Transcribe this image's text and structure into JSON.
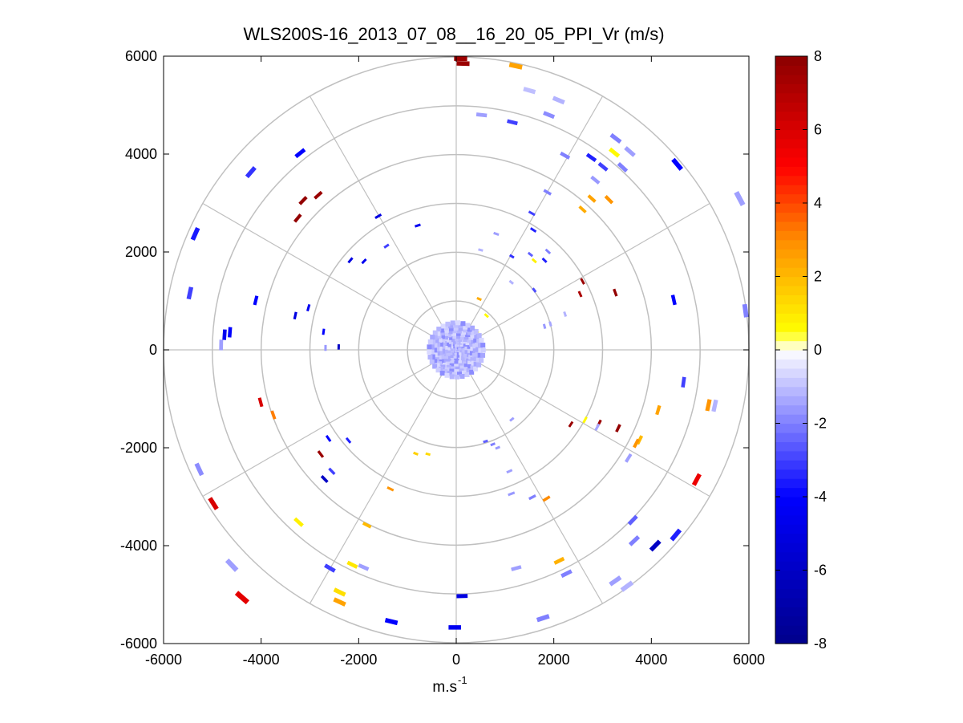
{
  "chart_data": {
    "type": "scatter",
    "subtype": "polar-ppi",
    "title": "WLS200S-16_2013_07_08__16_20_05_PPI_Vr (m/s)",
    "xlabel": "m.s",
    "xlabel_sup": "-1",
    "ylabel": "",
    "xlim": [
      -6000,
      6000
    ],
    "ylim": [
      -6000,
      6000
    ],
    "xticks": [
      "-6000",
      "-4000",
      "-2000",
      "0",
      "2000",
      "4000",
      "6000"
    ],
    "yticks": [
      "6000",
      "4000",
      "2000",
      "0",
      "-2000",
      "-4000",
      "-6000"
    ],
    "polar_grid": {
      "ring_radii": [
        1000,
        2000,
        3000,
        4000,
        5000,
        6000
      ],
      "spoke_step_deg": 30
    },
    "colorbar": {
      "min": -8,
      "max": 8,
      "ticks": [
        "8",
        "6",
        "4",
        "2",
        "0",
        "-2",
        "-4",
        "-6",
        "-8"
      ],
      "colormap": [
        [
          "#00008b",
          -8
        ],
        [
          "#0000ff",
          -4
        ],
        [
          "#ffffff",
          0
        ],
        [
          "#ffff00",
          0.5
        ],
        [
          "#ff8c00",
          3
        ],
        [
          "#ff0000",
          5
        ],
        [
          "#8b0000",
          8
        ]
      ]
    },
    "points": [
      {
        "x": 90,
        "y": 5950,
        "v": 7.5
      },
      {
        "x": 140,
        "y": 5850,
        "v": 7.6
      },
      {
        "x": 1220,
        "y": 5800,
        "v": 2.5
      },
      {
        "x": 1500,
        "y": 5300,
        "v": -1
      },
      {
        "x": 1900,
        "y": 4800,
        "v": -1.8
      },
      {
        "x": 2100,
        "y": 5100,
        "v": -1.2
      },
      {
        "x": 520,
        "y": 4800,
        "v": -1.5
      },
      {
        "x": 1150,
        "y": 4650,
        "v": -3
      },
      {
        "x": 3270,
        "y": 4320,
        "v": -2
      },
      {
        "x": 3240,
        "y": 4030,
        "v": 0.6
      },
      {
        "x": 3560,
        "y": 4050,
        "v": -1.5
      },
      {
        "x": 4530,
        "y": 3790,
        "v": -4
      },
      {
        "x": 2230,
        "y": 3970,
        "v": -2
      },
      {
        "x": 2770,
        "y": 3930,
        "v": -3.5
      },
      {
        "x": 3010,
        "y": 3740,
        "v": -3
      },
      {
        "x": 3410,
        "y": 3730,
        "v": -2
      },
      {
        "x": 2850,
        "y": 3470,
        "v": -1.6
      },
      {
        "x": 2780,
        "y": 3090,
        "v": 2.5
      },
      {
        "x": 3130,
        "y": 3070,
        "v": 2.8
      },
      {
        "x": 2590,
        "y": 2870,
        "v": 2.3
      },
      {
        "x": 1870,
        "y": 3220,
        "v": -2
      },
      {
        "x": 1550,
        "y": 2790,
        "v": -3
      },
      {
        "x": -3200,
        "y": 4020,
        "v": -4
      },
      {
        "x": -3140,
        "y": 3050,
        "v": 7.8
      },
      {
        "x": -3250,
        "y": 2690,
        "v": 7.8
      },
      {
        "x": -2830,
        "y": 3160,
        "v": 7.6
      },
      {
        "x": -4210,
        "y": 3630,
        "v": -3.2
      },
      {
        "x": -5350,
        "y": 2370,
        "v": -3.6
      },
      {
        "x": -5460,
        "y": 1160,
        "v": -3
      },
      {
        "x": -4640,
        "y": 360,
        "v": -4
      },
      {
        "x": -4750,
        "y": 310,
        "v": -4.5
      },
      {
        "x": -4820,
        "y": 100,
        "v": -1.5
      },
      {
        "x": -5270,
        "y": -2440,
        "v": -1.8
      },
      {
        "x": -4980,
        "y": -3140,
        "v": 6
      },
      {
        "x": -4600,
        "y": -4400,
        "v": -1.5
      },
      {
        "x": -4390,
        "y": -5060,
        "v": 5.7
      },
      {
        "x": -2780,
        "y": -2130,
        "v": 7.6
      },
      {
        "x": -2700,
        "y": -2640,
        "v": -6
      },
      {
        "x": -2550,
        "y": -2480,
        "v": -3
      },
      {
        "x": -3230,
        "y": -3520,
        "v": 0.8
      },
      {
        "x": -2590,
        "y": -4460,
        "v": -3
      },
      {
        "x": -2130,
        "y": -4390,
        "v": 1
      },
      {
        "x": -2390,
        "y": -4950,
        "v": 1.2
      },
      {
        "x": -2390,
        "y": -5150,
        "v": 2.5
      },
      {
        "x": -1830,
        "y": -3580,
        "v": 2
      },
      {
        "x": -1350,
        "y": -2840,
        "v": 2.8
      },
      {
        "x": -1900,
        "y": -4440,
        "v": -1.5
      },
      {
        "x": 120,
        "y": -5030,
        "v": -5
      },
      {
        "x": -1330,
        "y": -5550,
        "v": -4
      },
      {
        "x": -30,
        "y": -5670,
        "v": -4.5
      },
      {
        "x": 1780,
        "y": -5480,
        "v": -2
      },
      {
        "x": 2110,
        "y": -4310,
        "v": 2.2
      },
      {
        "x": 1230,
        "y": -4460,
        "v": -1.5
      },
      {
        "x": 2260,
        "y": -4570,
        "v": -2
      },
      {
        "x": 3500,
        "y": -4830,
        "v": -1.2
      },
      {
        "x": 3260,
        "y": -4720,
        "v": -1.5
      },
      {
        "x": 3620,
        "y": -3480,
        "v": -2.5
      },
      {
        "x": 4080,
        "y": -4000,
        "v": -6
      },
      {
        "x": 4500,
        "y": -3780,
        "v": -3.5
      },
      {
        "x": 3650,
        "y": -3900,
        "v": -2
      },
      {
        "x": 4930,
        "y": -2650,
        "v": 5.5
      },
      {
        "x": 4660,
        "y": -660,
        "v": -3
      },
      {
        "x": 5170,
        "y": -1130,
        "v": 2.8
      },
      {
        "x": 5300,
        "y": -1140,
        "v": -1.2
      },
      {
        "x": 4140,
        "y": -1230,
        "v": 2.5
      },
      {
        "x": 3760,
        "y": -1840,
        "v": 2
      },
      {
        "x": 3530,
        "y": -2210,
        "v": -1.5
      },
      {
        "x": 2930,
        "y": -1500,
        "v": 7.6
      },
      {
        "x": 3320,
        "y": -1600,
        "v": 7.8
      },
      {
        "x": 3690,
        "y": -1910,
        "v": 2.8
      },
      {
        "x": 2350,
        "y": -1520,
        "v": 7.6
      },
      {
        "x": 2640,
        "y": -1430,
        "v": 0.6
      },
      {
        "x": 2890,
        "y": -1580,
        "v": -1.4
      },
      {
        "x": 4460,
        "y": 1020,
        "v": -4
      },
      {
        "x": 5930,
        "y": 800,
        "v": -2
      },
      {
        "x": 5810,
        "y": 3090,
        "v": -1.5
      },
      {
        "x": 3260,
        "y": 1170,
        "v": 7.8
      },
      {
        "x": 2590,
        "y": 1400,
        "v": 7.6
      },
      {
        "x": 2540,
        "y": 1140,
        "v": 7.2
      },
      {
        "x": 1560,
        "y": -3010,
        "v": -2
      },
      {
        "x": 1850,
        "y": -3040,
        "v": 3
      },
      {
        "x": 1130,
        "y": -2940,
        "v": -1.6
      },
      {
        "x": 1090,
        "y": -2480,
        "v": -1.5
      },
      {
        "x": 750,
        "y": -1930,
        "v": -2
      },
      {
        "x": 600,
        "y": -1870,
        "v": -2.5
      },
      {
        "x": -580,
        "y": -2130,
        "v": 1.3
      },
      {
        "x": -830,
        "y": -2120,
        "v": 1.5
      },
      {
        "x": -4110,
        "y": 1010,
        "v": -4
      },
      {
        "x": -4010,
        "y": -1070,
        "v": 6
      },
      {
        "x": -3750,
        "y": -1330,
        "v": 3.2
      },
      {
        "x": -3300,
        "y": 700,
        "v": -5
      },
      {
        "x": -3030,
        "y": 860,
        "v": -4.5
      },
      {
        "x": -2720,
        "y": 370,
        "v": -4
      },
      {
        "x": -2680,
        "y": 40,
        "v": -1.6
      },
      {
        "x": -2410,
        "y": 60,
        "v": -6
      },
      {
        "x": -2170,
        "y": 1830,
        "v": -5
      },
      {
        "x": -1600,
        "y": 2730,
        "v": -5
      },
      {
        "x": -790,
        "y": 2540,
        "v": -4.5
      },
      {
        "x": -1430,
        "y": 2120,
        "v": -3
      },
      {
        "x": -1890,
        "y": 1810,
        "v": -4.5
      },
      {
        "x": -2620,
        "y": -1810,
        "v": -4
      },
      {
        "x": -2210,
        "y": -1850,
        "v": -3.5
      },
      {
        "x": 820,
        "y": 2370,
        "v": -1.5
      },
      {
        "x": 500,
        "y": 2040,
        "v": -1.2
      },
      {
        "x": 1580,
        "y": 2450,
        "v": -3.5
      },
      {
        "x": 1810,
        "y": 1830,
        "v": -3.5
      },
      {
        "x": 1880,
        "y": 2010,
        "v": -2
      },
      {
        "x": 1600,
        "y": 1820,
        "v": 0.8
      },
      {
        "x": 1520,
        "y": 1950,
        "v": -2.5
      },
      {
        "x": 1140,
        "y": 1910,
        "v": -3.2
      },
      {
        "x": 1600,
        "y": 1220,
        "v": -2.8
      },
      {
        "x": 1130,
        "y": 1380,
        "v": -1.2
      },
      {
        "x": 2230,
        "y": 730,
        "v": -1.2
      },
      {
        "x": 1930,
        "y": 530,
        "v": -1.4
      },
      {
        "x": 1810,
        "y": 480,
        "v": -1.6
      },
      {
        "x": 620,
        "y": 700,
        "v": 0.6
      },
      {
        "x": 470,
        "y": 1040,
        "v": 2.3
      },
      {
        "x": 420,
        "y": 380,
        "v": 0.5
      },
      {
        "x": 1140,
        "y": -1420,
        "v": -1.5
      },
      {
        "x": 850,
        "y": -2000,
        "v": -1.6
      }
    ],
    "point_note": "values approximated from colorbar; points read from display"
  }
}
